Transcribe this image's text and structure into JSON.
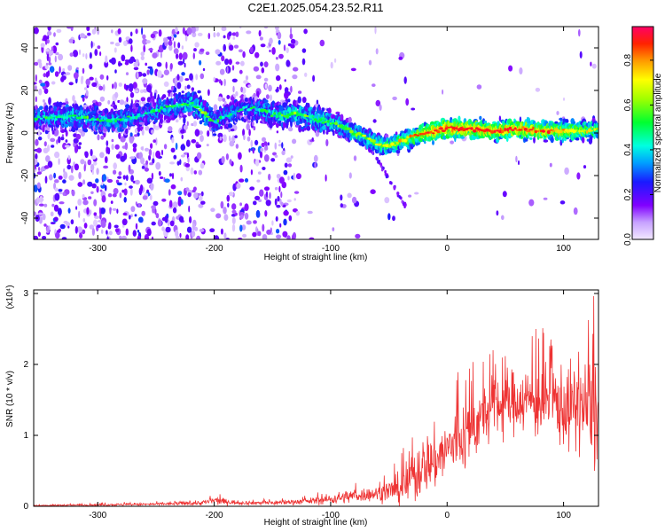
{
  "title": "C2E1.2025.054.23.52.R11",
  "chart_data": [
    {
      "type": "heatmap",
      "title": "C2E1.2025.054.23.52.R11",
      "xlabel": "Height of straight line (km)",
      "ylabel": "Frequency (Hz)",
      "xlim": [
        -355,
        130
      ],
      "ylim": [
        -50,
        50
      ],
      "x_ticks": [
        -300,
        -200,
        -100,
        0,
        100
      ],
      "y_ticks": [
        -40,
        -20,
        0,
        20,
        40
      ],
      "colorbar": {
        "label": "Normalized spectral amplitude",
        "range": [
          0,
          0.95
        ],
        "ticks": [
          0.0,
          0.2,
          0.4,
          0.6,
          0.8
        ],
        "tick_labels": [
          "0.0",
          "0.2",
          "0.4",
          "0.6",
          "0.8"
        ],
        "colormap": "rainbow (white-violet-blue-cyan-green-yellow-orange-red)"
      },
      "ridge": {
        "description": "dominant frequency band vs height",
        "x": [
          -345,
          -320,
          -300,
          -280,
          -260,
          -240,
          -220,
          -210,
          -200,
          -190,
          -175,
          -160,
          -150,
          -140,
          -130,
          -120,
          -110,
          -100,
          -90,
          -80,
          -70,
          -60,
          -50,
          -40,
          -30,
          -20,
          -10,
          0,
          20,
          40,
          60,
          80,
          100,
          120,
          130
        ],
        "freq": [
          7,
          8,
          6,
          6,
          9,
          12,
          14,
          10,
          5,
          8,
          12,
          11,
          9,
          8,
          9,
          8,
          6,
          5,
          3,
          0,
          -2,
          -5,
          -6,
          -4,
          -2,
          0,
          1,
          2,
          2,
          1,
          2,
          1,
          1,
          1,
          2
        ],
        "amplitude": [
          0.35,
          0.4,
          0.35,
          0.35,
          0.3,
          0.35,
          0.4,
          0.45,
          0.35,
          0.3,
          0.3,
          0.35,
          0.35,
          0.45,
          0.45,
          0.4,
          0.45,
          0.45,
          0.45,
          0.5,
          0.5,
          0.55,
          0.55,
          0.6,
          0.65,
          0.75,
          0.8,
          0.85,
          0.85,
          0.8,
          0.8,
          0.75,
          0.7,
          0.6,
          0.55
        ]
      }
    },
    {
      "type": "line",
      "title": "",
      "xlabel": "Height of straight line (km)",
      "ylabel": "SNR (10 * v/v)",
      "y_multiplier": "(x10⁴)",
      "xlim": [
        -355,
        130
      ],
      "ylim": [
        0,
        3.05
      ],
      "x_ticks": [
        -300,
        -200,
        -100,
        0,
        100
      ],
      "y_ticks": [
        0,
        1,
        2,
        3
      ],
      "series": [
        {
          "color": "#ee3333",
          "x": [
            -355,
            -300,
            -250,
            -210,
            -200,
            -180,
            -150,
            -120,
            -100,
            -80,
            -60,
            -40,
            -30,
            -20,
            -10,
            0,
            10,
            20,
            30,
            40,
            50,
            60,
            70,
            80,
            90,
            100,
            110,
            120,
            128
          ],
          "mean": [
            0.01,
            0.02,
            0.03,
            0.05,
            0.08,
            0.05,
            0.05,
            0.07,
            0.1,
            0.15,
            0.18,
            0.25,
            0.4,
            0.6,
            0.65,
            0.8,
            0.95,
            1.05,
            1.25,
            1.4,
            1.45,
            1.5,
            1.5,
            1.45,
            1.5,
            1.4,
            1.4,
            1.4,
            1.3
          ],
          "peak": [
            0.03,
            0.05,
            0.07,
            0.12,
            0.2,
            0.1,
            0.12,
            0.15,
            0.25,
            0.35,
            0.38,
            0.7,
            1.3,
            1.4,
            1.55,
            1.6,
            2.1,
            2.0,
            2.15,
            2.25,
            2.45,
            2.35,
            2.5,
            2.5,
            2.55,
            2.6,
            2.6,
            2.8,
            3.05
          ]
        }
      ]
    }
  ]
}
